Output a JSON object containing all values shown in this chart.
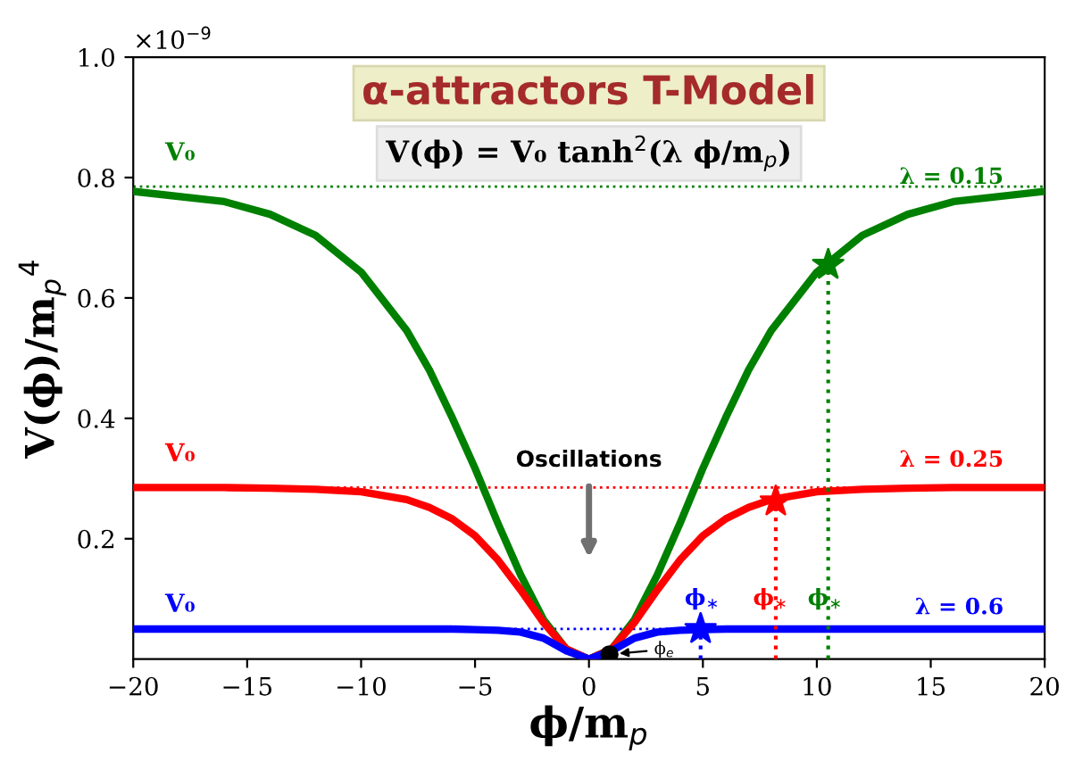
{
  "chart_data": {
    "type": "line",
    "title": "α-attractors T-Model",
    "subtitle": "V(ϕ) = V₀ tanh$^{2}$(λ ϕ/m$_{p}$)",
    "xlabel": "ϕ/m$_{p}$",
    "ylabel": "V(ϕ)/m$_{p}$$^{4}$",
    "x": [
      -20,
      -16,
      -14,
      -12,
      -10,
      -8,
      -7,
      -6,
      -5,
      -4,
      -3,
      -2,
      -1,
      0,
      1,
      2,
      3,
      4,
      5,
      6,
      7,
      8,
      10,
      12,
      14,
      16,
      20
    ],
    "series": [
      {
        "color": "#008000",
        "values": [
          0.777,
          0.76,
          0.739,
          0.704,
          0.643,
          0.546,
          0.48,
          0.401,
          0.317,
          0.226,
          0.14,
          0.066,
          0.017,
          0,
          0.017,
          0.066,
          0.14,
          0.226,
          0.317,
          0.401,
          0.48,
          0.546,
          0.643,
          0.704,
          0.739,
          0.76,
          0.777
        ]
      },
      {
        "color": "#ff0000",
        "values": [
          0.285,
          0.285,
          0.284,
          0.282,
          0.278,
          0.265,
          0.252,
          0.233,
          0.205,
          0.165,
          0.115,
          0.061,
          0.017,
          0,
          0.017,
          0.061,
          0.115,
          0.165,
          0.205,
          0.233,
          0.252,
          0.265,
          0.278,
          0.282,
          0.284,
          0.285,
          0.285
        ]
      },
      {
        "color": "#0000ff",
        "values": [
          0.05,
          0.05,
          0.05,
          0.05,
          0.05,
          0.05,
          0.05,
          0.05,
          0.049,
          0.048,
          0.045,
          0.035,
          0.014,
          0,
          0.014,
          0.035,
          0.045,
          0.048,
          0.049,
          0.05,
          0.05,
          0.05,
          0.05,
          0.05,
          0.05,
          0.05,
          0.05
        ]
      },
      {
        "color": "#008000",
        "x": [
          10.5,
          10.5
        ],
        "values": [
          0,
          0.655
        ],
        "line_style": "dotted"
      },
      {
        "color": "#ff0000",
        "x": [
          8.2,
          8.2
        ],
        "values": [
          0,
          0.262
        ],
        "line_style": "dotted"
      },
      {
        "color": "#0000ff",
        "x": [
          4.9,
          4.9
        ],
        "values": [
          0,
          0.05
        ],
        "line_style": "dotted"
      },
      {
        "type": "scatter",
        "marker": "star",
        "color": "#008000",
        "x": [
          10.5
        ],
        "values": [
          0.655
        ]
      },
      {
        "type": "scatter",
        "marker": "star",
        "color": "#ff0000",
        "x": [
          8.2
        ],
        "values": [
          0.262
        ]
      },
      {
        "type": "scatter",
        "marker": "star",
        "color": "#0000ff",
        "x": [
          4.9
        ],
        "values": [
          0.05
        ]
      },
      {
        "type": "scatter",
        "marker": "circle",
        "color": "#000000",
        "x": [
          0.9
        ],
        "values": [
          0.008
        ]
      }
    ],
    "ref_lines": [
      {
        "axis": "y",
        "value": 0.785,
        "color": "#008000",
        "line_style": "dotted"
      },
      {
        "axis": "y",
        "value": 0.285,
        "color": "#ff0000",
        "line_style": "dotted"
      },
      {
        "axis": "y",
        "value": 0.05,
        "color": "#0000ff",
        "line_style": "dotted"
      }
    ],
    "annotations": [
      "V₀",
      "V₀",
      "V₀",
      "λ = 0.15",
      "λ = 0.25",
      "λ = 0.6",
      "ϕ$_{∗}$",
      "ϕ$_{∗}$",
      "ϕ$_{∗}$",
      {
        "text": "ϕ$_{e}$",
        "x": 0.9,
        "y": 0.008
      },
      "Oscillations",
      "×10$^{−9}$"
    ],
    "xlim": [
      -20,
      20
    ],
    "xticks": [
      {
        "value": -20,
        "label": "−20"
      },
      {
        "value": -15,
        "label": "−15"
      },
      {
        "value": -10,
        "label": "−10"
      },
      {
        "value": -5,
        "label": "−5"
      },
      0,
      5,
      10,
      15,
      20
    ],
    "ylim": [
      0,
      1.0
    ],
    "yticks": [
      0.2,
      0.4,
      0.6,
      0.8,
      {
        "value": 1,
        "label": "1.0"
      }
    ],
    "grid": false,
    "legend": false
  }
}
